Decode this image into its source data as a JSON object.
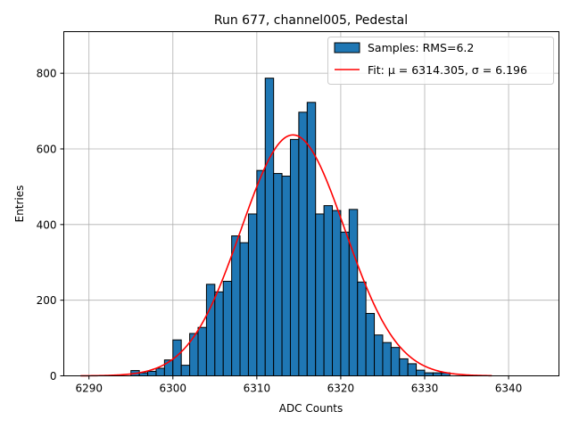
{
  "chart_data": {
    "type": "bar",
    "title": "Run 677, channel005, Pedestal",
    "xlabel": "ADC Counts",
    "ylabel": "Entries",
    "xlim": [
      6287,
      6346
    ],
    "ylim": [
      0,
      910
    ],
    "xticks": [
      6290,
      6300,
      6310,
      6320,
      6330,
      6340
    ],
    "yticks": [
      0,
      200,
      400,
      600,
      800
    ],
    "grid": true,
    "legend_position": "top-right",
    "bins": {
      "start": 6295,
      "width": 1,
      "counts": [
        14,
        8,
        12,
        20,
        42,
        95,
        28,
        112,
        128,
        242,
        222,
        250,
        370,
        352,
        428,
        543,
        787,
        535,
        528,
        625,
        697,
        723,
        428,
        450,
        437,
        380,
        440,
        248,
        165,
        108,
        88,
        75,
        45,
        32,
        15,
        8,
        8,
        8
      ]
    },
    "series": [
      {
        "name": "Samples: RMS=6.2",
        "kind": "histogram",
        "color": "#1f77b4",
        "edgecolor": "#000000"
      },
      {
        "name": "Fit: μ = 6314.305, σ = 6.196",
        "kind": "gaussian",
        "color": "#ff0000",
        "mu": 6314.305,
        "sigma": 6.196,
        "amplitude": 637,
        "x_range": [
          6289,
          6338
        ]
      }
    ]
  }
}
